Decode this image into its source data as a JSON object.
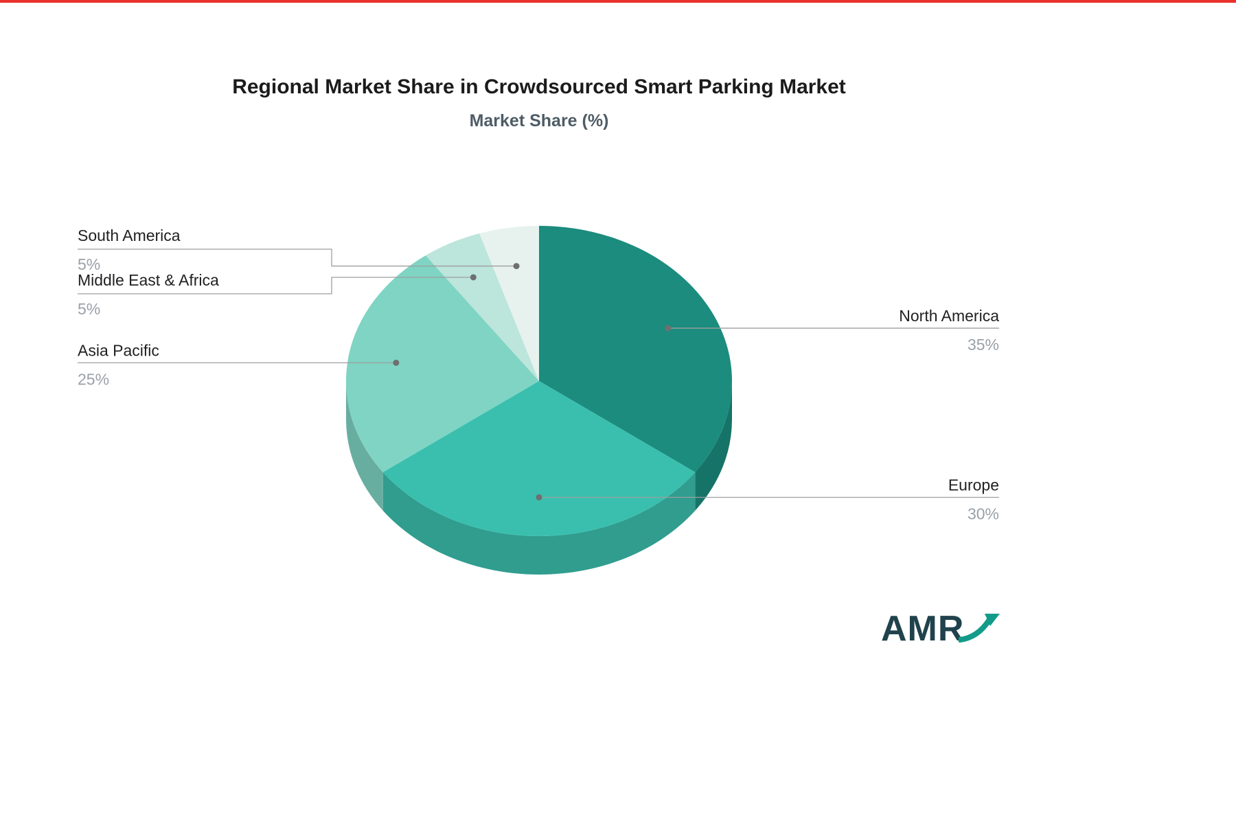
{
  "title": "Regional Market Share in Crowdsourced Smart Parking Market",
  "subtitle": "Market Share (%)",
  "logo": {
    "text": "AMR"
  },
  "chart_data": {
    "type": "pie",
    "style": "3d",
    "title": "Regional Market Share in Crowdsourced Smart Parking Market",
    "subtitle": "Market Share (%)",
    "unit": "%",
    "direction": "clockwise",
    "start_angle_deg": 0,
    "legend": "none",
    "categories": [
      "North America",
      "Europe",
      "Asia Pacific",
      "Middle East & Africa",
      "South America"
    ],
    "values": [
      35,
      30,
      25,
      5,
      5
    ],
    "colors": [
      "#1b8c7e",
      "#3abfae",
      "#7fd4c3",
      "#bce5dc",
      "#e7f2ee"
    ],
    "label_color": "#212121",
    "value_color": "#9aa0a6"
  }
}
